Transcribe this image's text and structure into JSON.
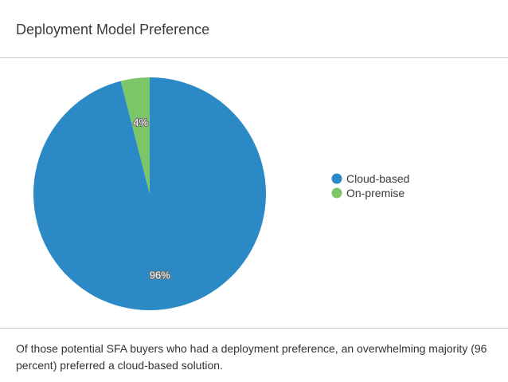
{
  "header": {
    "title": "Deployment Model Preference"
  },
  "chart_data": {
    "type": "pie",
    "title": "Deployment Model Preference",
    "categories": [
      "Cloud-based",
      "On-premise"
    ],
    "values": [
      96,
      4
    ],
    "labels": [
      "96%",
      "4%"
    ],
    "colors": [
      "#2b8ac6",
      "#7cc66a"
    ],
    "legend": "right"
  },
  "footer": {
    "caption": "Of those potential SFA buyers who had a deployment preference, an overwhelming majority (96 percent) preferred a cloud-based solution."
  }
}
